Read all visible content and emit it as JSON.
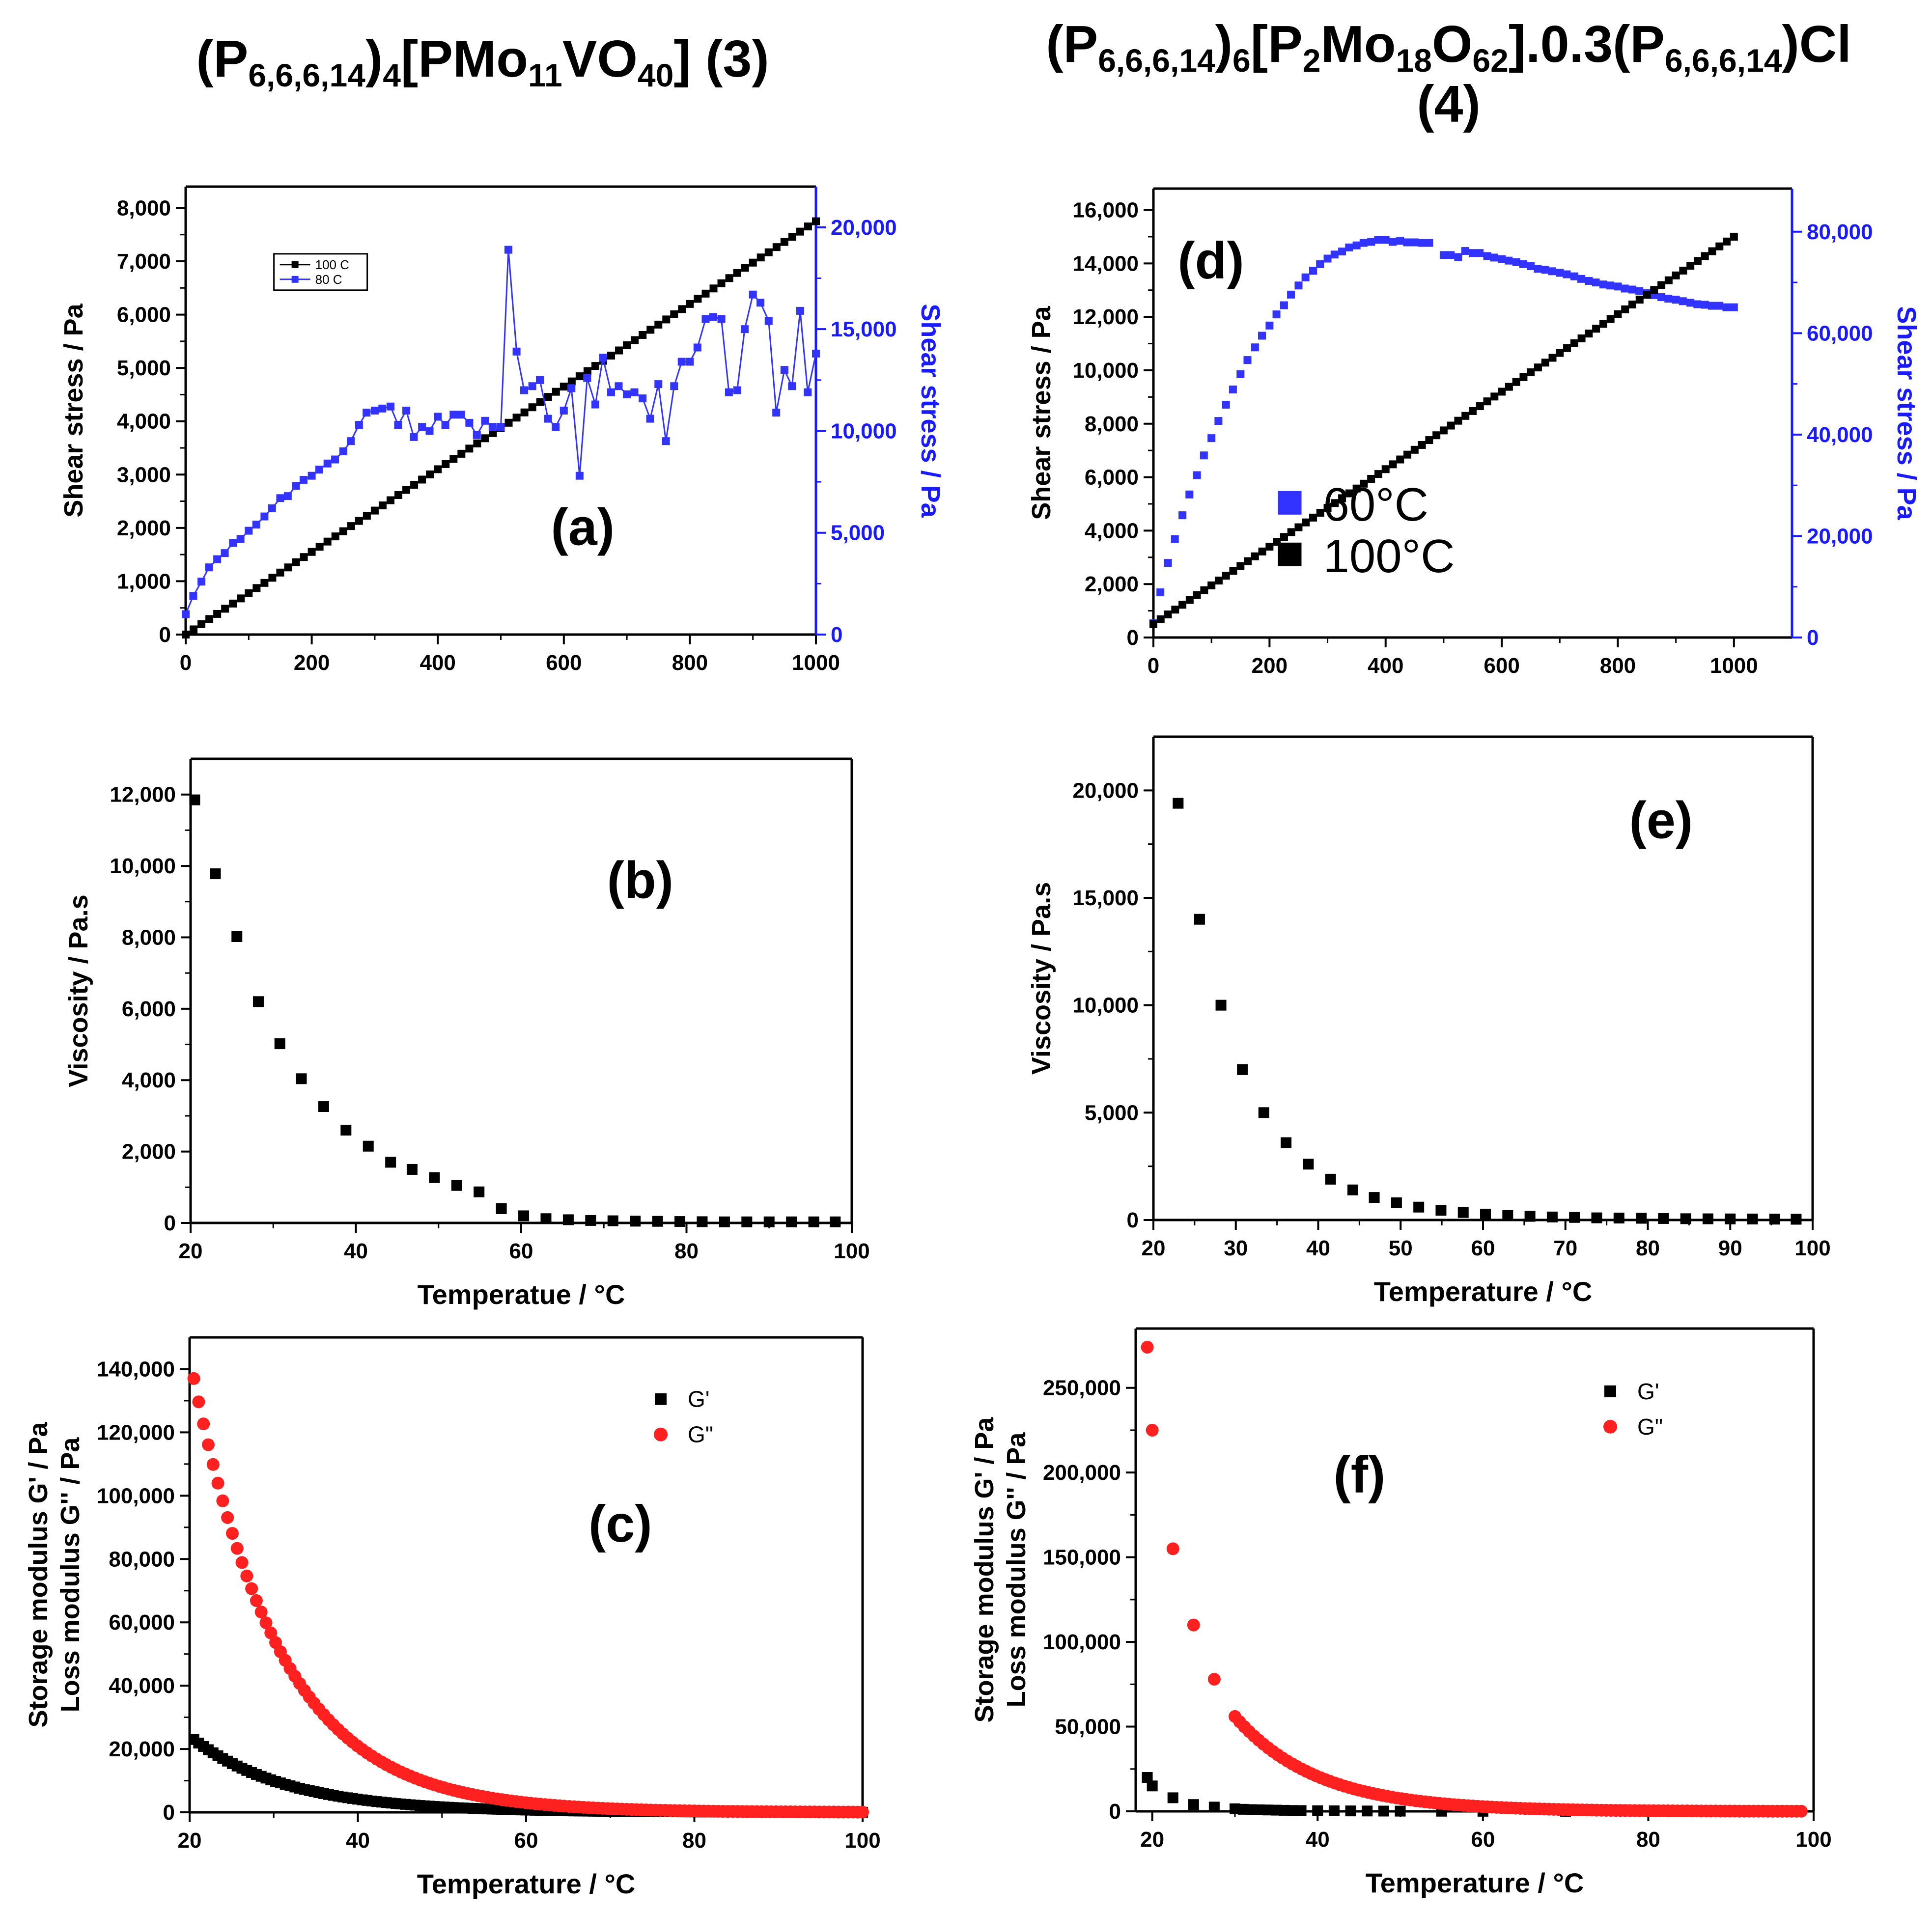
{
  "columns": [
    {
      "formula": [
        [
          "(P",
          ""
        ],
        [
          "6,6,6,14",
          "sub"
        ],
        [
          ")",
          ""
        ],
        [
          "4",
          "sub"
        ],
        [
          "[PMo",
          ""
        ],
        [
          "11",
          "sub"
        ],
        [
          "VO",
          ""
        ],
        [
          "40",
          "sub"
        ],
        [
          "] (3)",
          ""
        ]
      ]
    },
    {
      "formula": [
        [
          "(P",
          ""
        ],
        [
          "6,6,6,14",
          "sub"
        ],
        [
          ")",
          ""
        ],
        [
          "6",
          "sub"
        ],
        [
          "[P",
          ""
        ],
        [
          "2",
          "sub"
        ],
        [
          "Mo",
          ""
        ],
        [
          "18",
          "sub"
        ],
        [
          "O",
          ""
        ],
        [
          "62",
          "sub"
        ],
        [
          "].0.3(P",
          ""
        ],
        [
          "6,6,6,14",
          "sub"
        ],
        [
          ")Cl",
          ""
        ]
      ],
      "formula_line2": "(4)"
    }
  ],
  "colors": {
    "black": "#000000",
    "blue": "#3333ff",
    "red": "#ff2020",
    "axis_blue": "#1a1aff"
  },
  "chart_data": [
    {
      "id": "a",
      "type": "line",
      "panel_label": "(a)",
      "xlim": [
        0,
        1000
      ],
      "xticks": [
        0,
        200,
        400,
        600,
        800,
        1000
      ],
      "xlabel": "",
      "ylabel": "Shear stress / Pa",
      "ylim": [
        0,
        8400
      ],
      "yticks": [
        0,
        1000,
        2000,
        3000,
        4000,
        5000,
        6000,
        7000,
        8000
      ],
      "y2label": "Shear stress / Pa",
      "y2lim": [
        0,
        22000
      ],
      "y2ticks": [
        0,
        5000,
        10000,
        15000,
        20000
      ],
      "legend": {
        "position": "top-left",
        "style": "small",
        "entries": [
          {
            "label": "100 C",
            "color": "black"
          },
          {
            "label": "80 C",
            "color": "blue"
          }
        ]
      },
      "series": [
        {
          "name": "100 C",
          "axis": "left",
          "color": "black",
          "marker": "square",
          "connect": true,
          "linear": {
            "x0": 0,
            "x1": 1000,
            "y0": 0,
            "y1": 7750,
            "n": 81
          }
        },
        {
          "name": "80 C",
          "axis": "right",
          "color": "blue",
          "marker": "square",
          "connect": true,
          "thin": true,
          "x": [
            0,
            12,
            25,
            37,
            50,
            62,
            75,
            87,
            100,
            112,
            125,
            137,
            150,
            162,
            175,
            187,
            200,
            212,
            225,
            237,
            250,
            262,
            275,
            287,
            300,
            312,
            325,
            337,
            350,
            362,
            375,
            387,
            400,
            412,
            425,
            437,
            450,
            462,
            475,
            487,
            500,
            512,
            525,
            537,
            550,
            562,
            575,
            587,
            600,
            612,
            625,
            637,
            650,
            662,
            675,
            687,
            700,
            712,
            725,
            737,
            750,
            762,
            775,
            787,
            800,
            812,
            825,
            837,
            850,
            862,
            875,
            887,
            900,
            912,
            925,
            937,
            950,
            962,
            975,
            987,
            1000
          ],
          "values": [
            1000,
            1900,
            2600,
            3300,
            3700,
            4000,
            4500,
            4700,
            5100,
            5400,
            5800,
            6200,
            6700,
            6800,
            7300,
            7600,
            7800,
            8100,
            8400,
            8600,
            9000,
            9500,
            10300,
            10900,
            11000,
            11100,
            11200,
            10300,
            11000,
            9700,
            10200,
            10000,
            10700,
            10300,
            10800,
            10800,
            10400,
            9800,
            10500,
            10200,
            10200,
            18900,
            13900,
            12000,
            12200,
            12500,
            10600,
            10200,
            11000,
            12100,
            7800,
            12600,
            11300,
            13600,
            11900,
            12200,
            11800,
            11900,
            11600,
            10600,
            12300,
            9500,
            12200,
            13400,
            13400,
            14100,
            15500,
            15600,
            15500,
            11900,
            12000,
            15000,
            16700,
            16300,
            15400,
            10900,
            13000,
            12200,
            15900,
            11900,
            13800
          ]
        }
      ]
    },
    {
      "id": "d",
      "type": "line",
      "panel_label": "(d)",
      "xlim": [
        0,
        1100
      ],
      "xticks": [
        0,
        200,
        400,
        600,
        800,
        1000
      ],
      "xlabel": "",
      "ylabel": "Shear stress / Pa",
      "ylim": [
        0,
        16800
      ],
      "yticks": [
        0,
        2000,
        4000,
        6000,
        8000,
        10000,
        12000,
        14000,
        16000
      ],
      "y2label": "Shear stress / Pa",
      "y2lim": [
        0,
        88500
      ],
      "y2ticks": [
        0,
        20000,
        40000,
        60000,
        80000
      ],
      "legend": {
        "position": "center-right",
        "style": "large",
        "entries": [
          {
            "label": "60°C",
            "color": "blue"
          },
          {
            "label": "100°C",
            "color": "black"
          }
        ]
      },
      "series": [
        {
          "name": "60°C",
          "axis": "right",
          "color": "blue",
          "marker": "square",
          "connect": false,
          "x": [
            0,
            12,
            25,
            37,
            50,
            62,
            75,
            87,
            100,
            112,
            125,
            137,
            150,
            162,
            175,
            187,
            200,
            212,
            225,
            237,
            250,
            262,
            275,
            287,
            300,
            312,
            325,
            337,
            350,
            362,
            375,
            387,
            400,
            412,
            425,
            437,
            450,
            462,
            475,
            500,
            512,
            525,
            537,
            550,
            562,
            575,
            587,
            600,
            612,
            625,
            637,
            650,
            662,
            675,
            687,
            700,
            712,
            725,
            737,
            750,
            762,
            775,
            787,
            800,
            812,
            825,
            837,
            850,
            862,
            875,
            887,
            900,
            912,
            925,
            937,
            950,
            962,
            975,
            987,
            1000
          ],
          "values": [
            2800,
            8900,
            14700,
            19400,
            24100,
            28200,
            32000,
            35900,
            39300,
            42700,
            45900,
            48900,
            51900,
            54700,
            57200,
            59500,
            61500,
            63700,
            65500,
            67600,
            69400,
            71000,
            72300,
            73600,
            74700,
            75500,
            76100,
            76900,
            77300,
            77800,
            78000,
            78400,
            78400,
            78000,
            78200,
            77900,
            77900,
            77800,
            77800,
            75400,
            75400,
            75000,
            76200,
            75800,
            75800,
            75200,
            74900,
            74600,
            74300,
            74000,
            73600,
            73200,
            72700,
            72500,
            72200,
            71900,
            71600,
            71200,
            70700,
            70300,
            70000,
            69600,
            69400,
            69200,
            68800,
            68600,
            68300,
            67900,
            67500,
            67100,
            66800,
            66600,
            66300,
            66000,
            65700,
            65600,
            65400,
            65400,
            65100,
            65100
          ]
        },
        {
          "name": "100°C",
          "axis": "left",
          "color": "black",
          "marker": "square",
          "connect": false,
          "linear": {
            "x0": 0,
            "x1": 1000,
            "y0": 500,
            "y1": 15000,
            "n": 81
          }
        }
      ]
    },
    {
      "id": "b",
      "type": "scatter",
      "panel_label": "(b)",
      "xlim": [
        20,
        100
      ],
      "xticks": [
        20,
        40,
        60,
        80,
        100
      ],
      "xlabel": "Temperatue / °C",
      "ylabel": "Viscosity / Pa.s",
      "ylim": [
        0,
        13000
      ],
      "yticks": [
        0,
        2000,
        4000,
        6000,
        8000,
        10000,
        12000
      ],
      "series": [
        {
          "name": "viscosity",
          "color": "black",
          "marker": "square",
          "x": [
            20.5,
            23,
            25.6,
            28.2,
            30.8,
            33.4,
            36.1,
            38.8,
            41.5,
            44.2,
            46.8,
            49.5,
            52.2,
            54.9,
            57.6,
            60.3,
            63,
            65.7,
            68.4,
            71.1,
            73.8,
            76.5,
            79.2,
            81.9,
            84.6,
            87.3,
            90,
            92.7,
            95.4,
            98
          ],
          "values": [
            11850,
            9780,
            8020,
            6200,
            5020,
            4040,
            3260,
            2600,
            2150,
            1700,
            1500,
            1270,
            1050,
            870,
            400,
            200,
            120,
            90,
            70,
            60,
            50,
            45,
            40,
            35,
            30,
            30,
            30,
            30,
            30,
            30
          ]
        }
      ]
    },
    {
      "id": "e",
      "type": "scatter",
      "panel_label": "(e)",
      "xlim": [
        20,
        100
      ],
      "xticks": [
        20,
        30,
        40,
        50,
        60,
        70,
        80,
        90,
        100
      ],
      "xlabel": "Temperature / °C",
      "ylabel": "Viscosity / Pa.s",
      "ylim": [
        0,
        22500
      ],
      "yticks": [
        0,
        5000,
        10000,
        15000,
        20000
      ],
      "series": [
        {
          "name": "viscosity",
          "color": "black",
          "marker": "square",
          "x": [
            23,
            25.6,
            28.2,
            30.8,
            33.4,
            36.1,
            38.8,
            41.5,
            44.2,
            46.8,
            49.5,
            52.2,
            54.9,
            57.6,
            60.3,
            63,
            65.7,
            68.4,
            71.1,
            73.8,
            76.5,
            79.2,
            81.9,
            84.6,
            87.3,
            90,
            92.7,
            95.4,
            98
          ],
          "values": [
            19400,
            14000,
            10000,
            7000,
            5000,
            3600,
            2600,
            1900,
            1400,
            1050,
            800,
            600,
            450,
            350,
            270,
            210,
            170,
            140,
            120,
            100,
            90,
            80,
            70,
            60,
            55,
            50,
            45,
            40,
            35
          ]
        }
      ]
    },
    {
      "id": "c",
      "type": "scatter",
      "panel_label": "(c)",
      "xlim": [
        20,
        100
      ],
      "xticks": [
        20,
        40,
        60,
        80,
        100
      ],
      "xlabel": "Temperature / °C",
      "ylabel": "Storage modulus G' / Pa",
      "ylabel2": "Loss modulus G'' / Pa",
      "ylim": [
        0,
        150000
      ],
      "yticks": [
        0,
        20000,
        40000,
        60000,
        80000,
        100000,
        120000,
        140000
      ],
      "legend": {
        "position": "top-right",
        "style": "medium",
        "entries": [
          {
            "label": "G'",
            "color": "black",
            "marker": "square"
          },
          {
            "label": "G\"",
            "color": "red",
            "marker": "circle"
          }
        ]
      },
      "series": [
        {
          "name": "G'",
          "color": "black",
          "marker": "square",
          "decay": {
            "from": 20.5,
            "to": 100,
            "n": 140,
            "a": 23000,
            "k": 0.088
          }
        },
        {
          "name": "G\"",
          "color": "red",
          "marker": "circle",
          "decay": {
            "from": 20.5,
            "to": 100,
            "n": 140,
            "a": 137000,
            "k": 0.0965
          }
        }
      ]
    },
    {
      "id": "f",
      "type": "scatter",
      "panel_label": "(f)",
      "xlim": [
        18,
        100
      ],
      "xticks": [
        20,
        40,
        60,
        80,
        100
      ],
      "xlabel": "Temperature / °C",
      "ylabel": "Storage modulus G' / Pa",
      "ylabel2": "Loss modulus G'' / Pa",
      "ylim": [
        0,
        285000
      ],
      "yticks": [
        0,
        50000,
        100000,
        150000,
        200000,
        250000
      ],
      "legend": {
        "position": "top-right",
        "style": "medium",
        "entries": [
          {
            "label": "G'",
            "color": "black",
            "marker": "square"
          },
          {
            "label": "G\"",
            "color": "red",
            "marker": "circle"
          }
        ]
      },
      "series": [
        {
          "name": "G'",
          "color": "black",
          "marker": "square",
          "x": [
            19.4,
            20,
            22.5,
            25,
            27.5,
            30,
            31,
            32,
            33,
            34,
            35,
            36,
            37,
            38,
            40,
            42,
            44,
            46,
            48,
            50,
            55,
            60,
            70,
            80,
            90,
            98
          ],
          "values": [
            20000,
            15000,
            8000,
            4000,
            2500,
            1500,
            1200,
            1000,
            900,
            800,
            700,
            600,
            500,
            450,
            350,
            300,
            250,
            200,
            150,
            120,
            80,
            50,
            30,
            20,
            10,
            5
          ]
        },
        {
          "name": "G\"",
          "color": "red",
          "marker": "circle",
          "x": [
            19.4,
            20,
            22.5,
            25,
            27.5
          ],
          "values": [
            274000,
            225000,
            155000,
            110000,
            78000
          ],
          "decay": {
            "from": 30,
            "to": 98.5,
            "n": 120,
            "a": 56000,
            "k": 0.1,
            "ref": 30
          }
        }
      ]
    }
  ]
}
